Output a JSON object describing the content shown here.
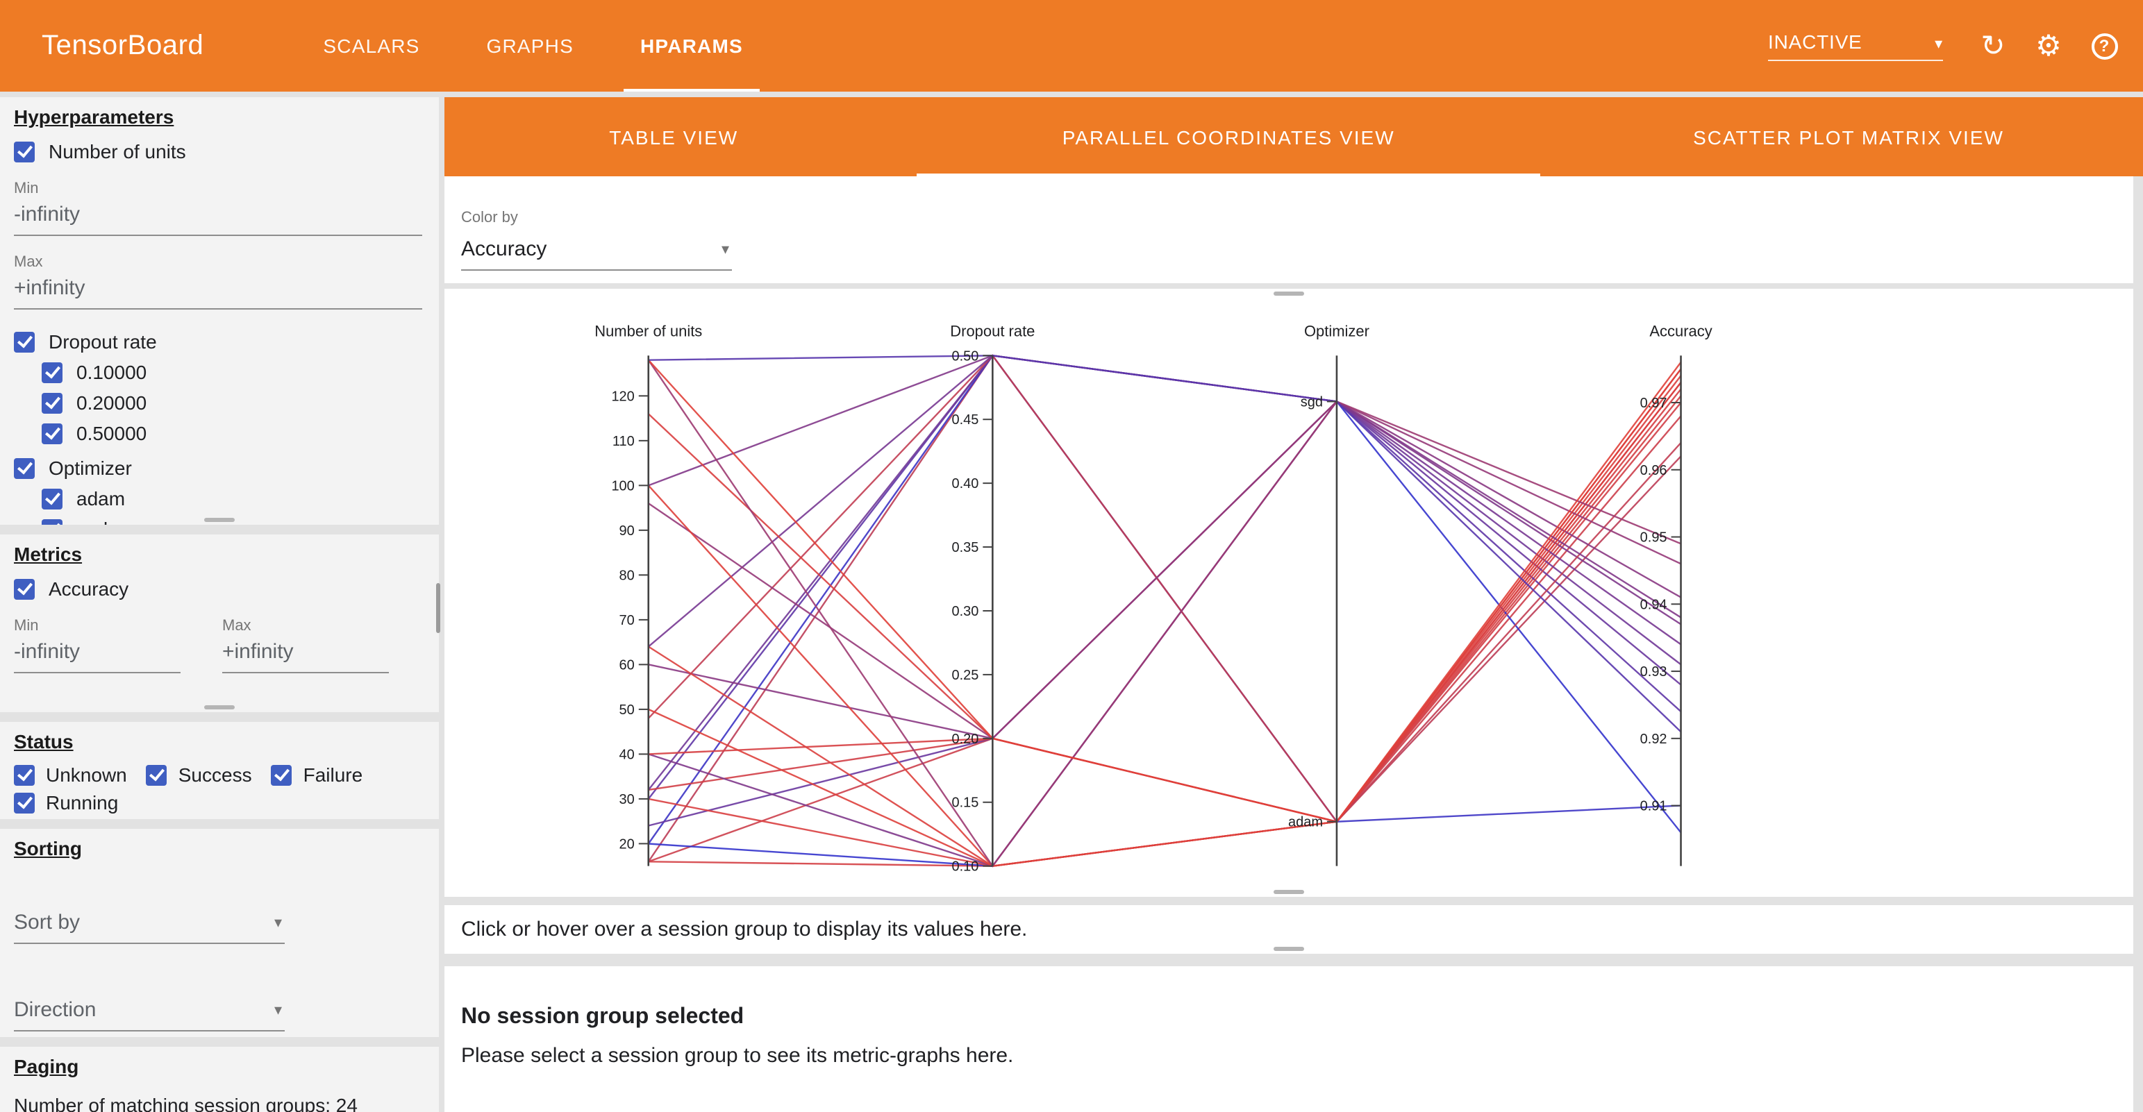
{
  "topbar": {
    "title": "TensorBoard",
    "tabs": [
      {
        "label": "SCALARS"
      },
      {
        "label": "GRAPHS"
      },
      {
        "label": "HPARAMS"
      }
    ],
    "status_dropdown": "INACTIVE",
    "icons": {
      "refresh": "↻",
      "settings": "⚙",
      "help": "?"
    }
  },
  "ui": {
    "dropdown_arrow": "▾"
  },
  "sidebar": {
    "hyperparameters": {
      "heading": "Hyperparameters",
      "number_of_units": {
        "label": "Number of units",
        "min_label": "Min",
        "min_value": "-infinity",
        "max_label": "Max",
        "max_value": "+infinity"
      },
      "dropout_rate": {
        "label": "Dropout rate",
        "options": [
          "0.10000",
          "0.20000",
          "0.50000"
        ]
      },
      "optimizer": {
        "label": "Optimizer",
        "options": [
          "adam",
          "sgd"
        ]
      }
    },
    "metrics": {
      "heading": "Metrics",
      "accuracy_label": "Accuracy",
      "min_label": "Min",
      "min_value": "-infinity",
      "max_label": "Max",
      "max_value": "+infinity"
    },
    "status": {
      "heading": "Status",
      "options": [
        "Unknown",
        "Success",
        "Failure",
        "Running"
      ]
    },
    "sorting": {
      "heading": "Sorting",
      "sort_by_placeholder": "Sort by",
      "direction_placeholder": "Direction"
    },
    "paging": {
      "heading": "Paging",
      "matching_text": "Number of matching session groups: 24"
    }
  },
  "main": {
    "view_tabs": [
      {
        "label": "TABLE VIEW"
      },
      {
        "label": "PARALLEL COORDINATES VIEW"
      },
      {
        "label": "SCATTER PLOT MATRIX VIEW"
      }
    ],
    "color_by": {
      "label": "Color by",
      "value": "Accuracy"
    },
    "hover_hint": "Click or hover over a session group to display its values here.",
    "no_selection": {
      "title": "No session group selected",
      "subtitle": "Please select a session group to see its metric-graphs here."
    }
  },
  "chart_data": {
    "type": "parallel_coordinates",
    "color_by": "Accuracy",
    "axes": [
      {
        "key": "units",
        "name": "Number of units",
        "type": "linear",
        "domain": [
          15,
          129
        ],
        "ticks": [
          20,
          30,
          40,
          50,
          60,
          70,
          80,
          90,
          100,
          110,
          120
        ],
        "decimals": 0
      },
      {
        "key": "dropout",
        "name": "Dropout rate",
        "type": "linear",
        "domain": [
          0.1,
          0.5
        ],
        "ticks": [
          0.1,
          0.15,
          0.2,
          0.25,
          0.3,
          0.35,
          0.4,
          0.45,
          0.5
        ],
        "decimals": 2
      },
      {
        "key": "optimizer",
        "name": "Optimizer",
        "type": "categorical",
        "categories": [
          "adam",
          "sgd"
        ]
      },
      {
        "key": "accuracy",
        "name": "Accuracy",
        "type": "linear",
        "domain": [
          0.901,
          0.977
        ],
        "ticks": [
          0.91,
          0.92,
          0.93,
          0.94,
          0.95,
          0.96,
          0.97
        ],
        "decimals": 2
      }
    ],
    "color_scale": {
      "min_color": "#3333cc",
      "max_color": "#e0403a",
      "domain": [
        0.906,
        0.976
      ]
    },
    "sessions": [
      {
        "units": 16,
        "dropout": 0.1,
        "optimizer": "adam",
        "accuracy": 0.971
      },
      {
        "units": 16,
        "dropout": 0.2,
        "optimizer": "adam",
        "accuracy": 0.968
      },
      {
        "units": 16,
        "dropout": 0.5,
        "optimizer": "adam",
        "accuracy": 0.962
      },
      {
        "units": 20,
        "dropout": 0.1,
        "optimizer": "sgd",
        "accuracy": 0.906
      },
      {
        "units": 20,
        "dropout": 0.5,
        "optimizer": "adam",
        "accuracy": 0.91
      },
      {
        "units": 24,
        "dropout": 0.2,
        "optimizer": "sgd",
        "accuracy": 0.928
      },
      {
        "units": 30,
        "dropout": 0.1,
        "optimizer": "adam",
        "accuracy": 0.973
      },
      {
        "units": 30,
        "dropout": 0.5,
        "optimizer": "sgd",
        "accuracy": 0.924
      },
      {
        "units": 32,
        "dropout": 0.2,
        "optimizer": "adam",
        "accuracy": 0.97
      },
      {
        "units": 32,
        "dropout": 0.5,
        "optimizer": "sgd",
        "accuracy": 0.931
      },
      {
        "units": 40,
        "dropout": 0.1,
        "optimizer": "sgd",
        "accuracy": 0.937
      },
      {
        "units": 40,
        "dropout": 0.2,
        "optimizer": "adam",
        "accuracy": 0.972
      },
      {
        "units": 48,
        "dropout": 0.5,
        "optimizer": "adam",
        "accuracy": 0.964
      },
      {
        "units": 50,
        "dropout": 0.1,
        "optimizer": "adam",
        "accuracy": 0.975
      },
      {
        "units": 60,
        "dropout": 0.2,
        "optimizer": "sgd",
        "accuracy": 0.941
      },
      {
        "units": 64,
        "dropout": 0.1,
        "optimizer": "adam",
        "accuracy": 0.974
      },
      {
        "units": 64,
        "dropout": 0.5,
        "optimizer": "sgd",
        "accuracy": 0.934
      },
      {
        "units": 96,
        "dropout": 0.2,
        "optimizer": "sgd",
        "accuracy": 0.946
      },
      {
        "units": 100,
        "dropout": 0.1,
        "optimizer": "adam",
        "accuracy": 0.975
      },
      {
        "units": 100,
        "dropout": 0.5,
        "optimizer": "sgd",
        "accuracy": 0.938
      },
      {
        "units": 116,
        "dropout": 0.2,
        "optimizer": "adam",
        "accuracy": 0.973
      },
      {
        "units": 128,
        "dropout": 0.1,
        "optimizer": "sgd",
        "accuracy": 0.949
      },
      {
        "units": 128,
        "dropout": 0.2,
        "optimizer": "adam",
        "accuracy": 0.976
      },
      {
        "units": 128,
        "dropout": 0.5,
        "optimizer": "sgd",
        "accuracy": 0.921
      }
    ]
  }
}
